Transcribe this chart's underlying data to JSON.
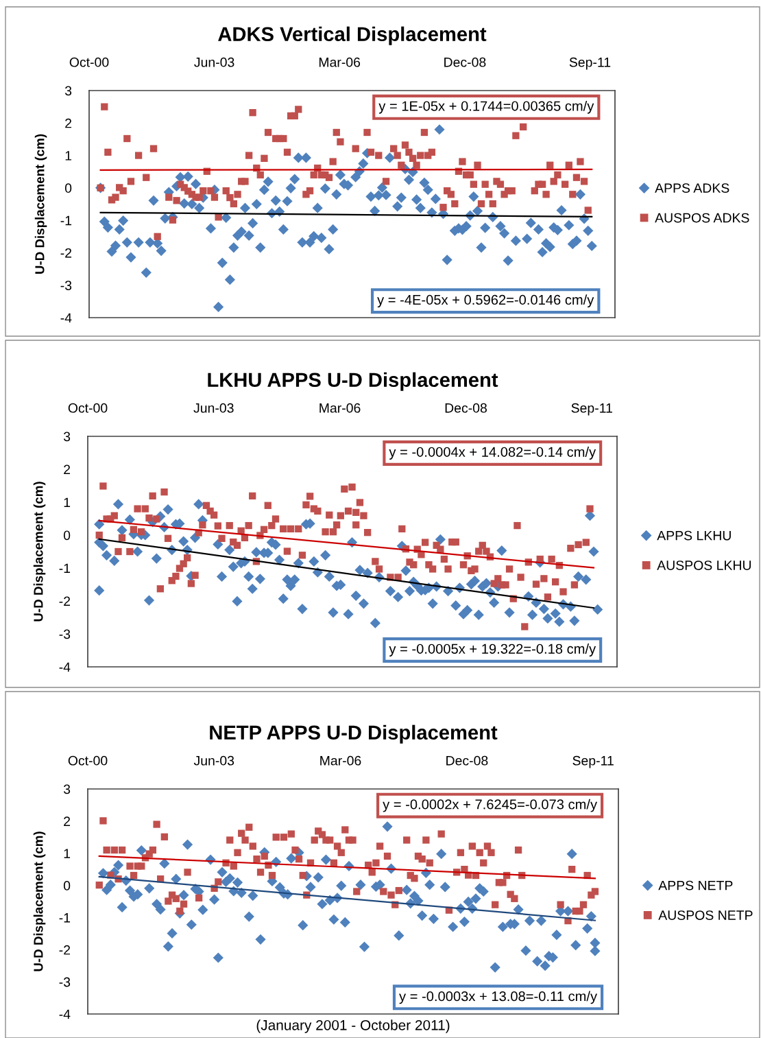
{
  "chart_data": [
    {
      "type": "scatter",
      "title": "ADKS Vertical Displacement",
      "ylabel": "U-D Displacement (cm)",
      "xlim": [
        "2000-10-02",
        "2012-04-03"
      ],
      "xticks": [
        {
          "value": "2000-10-02",
          "label": "Oct-00"
        },
        {
          "value": "2003-06-29",
          "label": "Jun-03"
        },
        {
          "value": "2006-03-25",
          "label": "Mar-06"
        },
        {
          "value": "2008-12-20",
          "label": "Dec-08"
        },
        {
          "value": "2011-09-16",
          "label": "Sep-11"
        }
      ],
      "ylim": [
        -4,
        3
      ],
      "yticks": [
        -4,
        -3,
        -2,
        -1,
        0,
        1,
        2,
        3
      ],
      "grid": false,
      "legend": "right",
      "series": [
        {
          "name": "APPS ADKS",
          "color": "#4f81bd",
          "marker": "diamond",
          "x": [
            "2001-01",
            "2001-02",
            "2001-03",
            "2001-04",
            "2001-05",
            "2001-06",
            "2001-07",
            "2001-08",
            "2001-09",
            "2001-11",
            "2002-01",
            "2002-02",
            "2002-03",
            "2002-04",
            "2002-05",
            "2002-06",
            "2002-07",
            "2002-08",
            "2002-09",
            "2002-10",
            "2002-11",
            "2002-12",
            "2003-01",
            "2003-02",
            "2003-03",
            "2003-04",
            "2003-05",
            "2003-06",
            "2003-07",
            "2003-08",
            "2003-09",
            "2003-10",
            "2003-11",
            "2003-12",
            "2004-01",
            "2004-02",
            "2004-03",
            "2004-04",
            "2004-05",
            "2004-06",
            "2004-07",
            "2004-08",
            "2004-09",
            "2004-10",
            "2004-11",
            "2004-12",
            "2005-01",
            "2005-02",
            "2005-03",
            "2005-04",
            "2005-05",
            "2005-06",
            "2005-07",
            "2005-08",
            "2005-09",
            "2005-10",
            "2005-11",
            "2005-12",
            "2006-01",
            "2006-02",
            "2006-03",
            "2006-04",
            "2006-05",
            "2006-06",
            "2006-08",
            "2006-09",
            "2006-10",
            "2006-11",
            "2006-12",
            "2007-01",
            "2007-02",
            "2007-03",
            "2007-04",
            "2007-05",
            "2007-07",
            "2007-08",
            "2007-09",
            "2007-10",
            "2007-11",
            "2007-12",
            "2008-01",
            "2008-02",
            "2008-03",
            "2008-04",
            "2008-05",
            "2008-06",
            "2008-07",
            "2008-08",
            "2008-10",
            "2008-11",
            "2008-12",
            "2009-01",
            "2009-02",
            "2009-03",
            "2009-04",
            "2009-05",
            "2009-06",
            "2009-08",
            "2009-10",
            "2009-11",
            "2009-12",
            "2010-02",
            "2010-05",
            "2010-06",
            "2010-08",
            "2010-09",
            "2010-10",
            "2010-11",
            "2010-12",
            "2011-01",
            "2011-02",
            "2011-04",
            "2011-05",
            "2011-06",
            "2011-07",
            "2011-08",
            "2011-09",
            "2011-10"
          ],
          "values": [
            0.0,
            -1.04,
            -1.22,
            -1.96,
            -1.78,
            -1.28,
            -1.01,
            -1.68,
            -2.14,
            -1.68,
            -2.61,
            -1.68,
            -0.39,
            -1.71,
            -1.94,
            -0.94,
            -0.13,
            -0.9,
            0.05,
            0.33,
            -0.48,
            0.35,
            -0.5,
            0.12,
            -0.62,
            -0.3,
            null,
            -1.25,
            -0.06,
            -3.67,
            -2.31,
            -0.92,
            -2.83,
            -1.84,
            -1.47,
            -1.35,
            -0.62,
            -1.47,
            -1.09,
            -0.5,
            -1.84,
            -0.06,
            0.19,
            -0.78,
            -0.39,
            -0.73,
            -1.28,
            -0.41,
            -0.01,
            0.27,
            0.93,
            -1.68,
            0.93,
            -1.68,
            -1.49,
            -0.62,
            -1.54,
            -0.02,
            -1.89,
            -1.28,
            -0.2,
            0.4,
            0.12,
            0.08,
            0.33,
            0.51,
            0.75,
            1.07,
            -0.27,
            -0.71,
            -0.23,
            0.01,
            -0.22,
            0.93,
            -0.57,
            -0.3,
            0.58,
            0.25,
            0.49,
            -0.36,
            -0.62,
            0.16,
            -0.06,
            -0.76,
            -0.34,
            1.8,
            -0.8,
            -2.22,
            -1.32,
            -1.25,
            -1.29,
            -1.18,
            -0.85,
            -0.27,
            -0.71,
            -1.84,
            -1.23,
            -0.9,
            -1.18,
            -1.4,
            -2.24,
            -1.63,
            -1.57,
            -1.08,
            -1.28,
            -1.98,
            -1.71,
            -1.82,
            -1.22,
            -1.3,
            -0.69,
            -1.15,
            -1.73,
            -1.63,
            -0.2,
            -0.95,
            -1.32,
            -1.79
          ]
        },
        {
          "name": "AUSPOS ADKS",
          "color": "#c0504d",
          "marker": "square",
          "x": [
            "2001-01",
            "2001-02",
            "2001-03",
            "2001-04",
            "2001-05",
            "2001-06",
            "2001-07",
            "2001-08",
            "2001-09",
            "2001-11",
            "2002-01",
            "2002-03",
            "2002-04",
            "2002-07",
            "2002-08",
            "2002-09",
            "2002-10",
            "2002-11",
            "2002-12",
            "2003-01",
            "2003-02",
            "2003-03",
            "2003-04",
            "2003-05",
            "2003-06",
            "2003-07",
            "2003-08",
            "2003-10",
            "2003-11",
            "2003-12",
            "2004-01",
            "2004-02",
            "2004-03",
            "2004-04",
            "2004-05",
            "2004-06",
            "2004-07",
            "2004-08",
            "2004-09",
            "2004-11",
            "2004-12",
            "2005-01",
            "2005-02",
            "2005-03",
            "2005-04",
            "2005-05",
            "2005-07",
            "2005-08",
            "2005-09",
            "2005-10",
            "2005-11",
            "2005-12",
            "2006-01",
            "2006-02",
            "2006-03",
            "2006-04",
            "2006-08",
            "2006-11",
            "2006-12",
            "2007-02",
            "2007-04",
            "2007-06",
            "2007-07",
            "2007-08",
            "2007-09",
            "2007-10",
            "2007-11",
            "2007-12",
            "2008-01",
            "2008-02",
            "2008-03",
            "2008-04",
            "2008-07",
            "2008-08",
            "2008-09",
            "2008-10",
            "2008-11",
            "2008-12",
            "2009-01",
            "2009-02",
            "2009-03",
            "2009-04",
            "2009-05",
            "2009-06",
            "2009-07",
            "2009-08",
            "2009-09",
            "2009-10",
            "2009-11",
            "2009-12",
            "2010-01",
            "2010-02",
            "2010-04",
            "2010-07",
            "2010-08",
            "2010-09",
            "2010-10",
            "2010-11",
            "2010-12",
            "2011-01",
            "2011-03",
            "2011-04",
            "2011-05",
            "2011-06",
            "2011-07",
            "2011-08",
            "2011-09"
          ],
          "values": [
            0.0,
            2.5,
            1.1,
            -0.37,
            -0.29,
            0.01,
            -0.09,
            1.52,
            0.2,
            1.0,
            0.32,
            1.21,
            -1.5,
            -0.29,
            -0.99,
            -0.39,
            0.11,
            0.01,
            -0.1,
            -0.2,
            -0.29,
            -0.29,
            -0.09,
            0.51,
            -0.09,
            -0.29,
            -0.9,
            -0.09,
            -0.3,
            -0.49,
            -0.2,
            0.2,
            0.2,
            1.0,
            2.32,
            0.61,
            0.4,
            0.91,
            1.71,
            1.52,
            1.52,
            1.52,
            1.1,
            2.22,
            2.22,
            2.42,
            -0.2,
            -0.09,
            0.4,
            0.61,
            0.4,
            0.4,
            0.32,
            0.81,
            1.71,
            1.42,
            1.21,
            1.71,
            1.1,
            1.0,
            0.2,
            1.21,
            1.0,
            0.7,
            1.32,
            1.1,
            0.91,
            0.7,
            1.0,
            1.71,
            1.0,
            1.1,
            -0.6,
            -0.09,
            -0.2,
            -0.49,
            0.51,
            0.81,
            0.4,
            0.4,
            0.11,
            0.7,
            -0.49,
            0.11,
            -0.2,
            -0.49,
            0.2,
            0.11,
            -0.2,
            -0.09,
            -0.09,
            1.61,
            1.88,
            -0.09,
            0.11,
            0.11,
            -0.2,
            0.7,
            0.2,
            0.4,
            0.11,
            0.7,
            -0.2,
            0.32,
            0.81,
            0.2,
            -0.69
          ]
        },
        {
          "type": "line",
          "color": "#cc0000",
          "marker": "none",
          "x": [
            "2001-01",
            "2011-10"
          ],
          "values": [
            0.55,
            0.57
          ]
        },
        {
          "type": "line",
          "color": "#000000",
          "marker": "none",
          "x": [
            "2001-01",
            "2011-10"
          ],
          "values": [
            -0.76,
            -0.89
          ]
        }
      ],
      "annotations": [
        "y = 1E-05x + 0.1744=0.00365 cm/y",
        "y = -4E-05x + 0.5962=-0.0146 cm/y"
      ]
    },
    {
      "type": "scatter",
      "title": "LKHU APPS U-D Displacement",
      "ylabel": "U-D Displacement (cm)",
      "xlim": [
        "2000-10-02",
        "2012-04-03"
      ],
      "xticks": [
        {
          "value": "2000-10-02",
          "label": "Oct-00"
        },
        {
          "value": "2003-06-29",
          "label": "Jun-03"
        },
        {
          "value": "2006-03-25",
          "label": "Mar-06"
        },
        {
          "value": "2008-12-20",
          "label": "Dec-08"
        },
        {
          "value": "2011-09-16",
          "label": "Sep-11"
        }
      ],
      "ylim": [
        -4,
        3
      ],
      "yticks": [
        -4,
        -3,
        -2,
        -1,
        0,
        1,
        2,
        3
      ],
      "grid": false,
      "legend": "right",
      "series": [
        {
          "name": "APPS LKHU",
          "color": "#4f81bd",
          "marker": "diamond",
          "x": [
            "2001-01",
            "2001-01",
            "2001-01",
            "2001-02",
            "2001-03",
            "2001-05",
            "2001-06",
            "2001-07",
            "2001-09",
            "2001-10",
            "2001-11",
            "2001-12",
            "2002-01",
            "2002-02",
            "2002-03",
            "2002-04",
            "2002-05",
            "2002-06",
            "2002-07",
            "2002-08",
            "2002-09",
            "2002-10",
            "2002-11",
            "2002-12",
            "2003-01",
            "2003-02",
            "2003-03",
            "2003-04",
            "2003-08",
            "2003-09",
            "2003-11",
            "2003-12",
            "2004-01",
            "2004-02",
            "2004-03",
            "2004-04",
            "2004-05",
            "2004-06",
            "2004-07",
            "2004-08",
            "2004-09",
            "2004-10",
            "2004-11",
            "2004-12",
            "2005-01",
            "2005-02",
            "2005-03",
            "2005-04",
            "2005-05",
            "2005-06",
            "2005-07",
            "2005-08",
            "2005-09",
            "2005-10",
            "2005-12",
            "2006-01",
            "2006-02",
            "2006-03",
            "2006-04",
            "2006-06",
            "2006-07",
            "2006-08",
            "2006-09",
            "2006-10",
            "2006-11",
            "2007-01",
            "2007-02",
            "2007-05",
            "2007-07",
            "2007-08",
            "2007-09",
            "2007-10",
            "2007-11",
            "2007-12",
            "2008-01",
            "2008-02",
            "2008-03",
            "2008-04",
            "2008-05",
            "2008-06",
            "2008-08",
            "2008-10",
            "2008-11",
            "2008-12",
            "2009-01",
            "2009-02",
            "2009-03",
            "2009-04",
            "2009-05",
            "2009-06",
            "2009-07",
            "2009-08",
            "2009-09",
            "2009-10",
            "2009-12",
            "2010-05",
            "2010-06",
            "2010-07",
            "2010-08",
            "2010-09",
            "2010-10",
            "2010-12",
            "2011-01",
            "2011-02",
            "2011-04",
            "2011-05",
            "2011-06",
            "2011-08",
            "2011-09",
            "2011-10",
            "2011-11"
          ],
          "values": [
            -0.22,
            -1.68,
            0.33,
            -0.33,
            -0.61,
            -0.78,
            0.94,
            0.15,
            0.47,
            0.03,
            -0.5,
            0.01,
            0,
            -1.98,
            0.4,
            -0.71,
            0.57,
            0.24,
            0.78,
            -0.45,
            0.33,
            0.35,
            -0.19,
            -0.45,
            -1.24,
            -0.08,
            0.94,
            0.45,
            -0.28,
            -1.26,
            -0.45,
            -0.96,
            -2.01,
            -0.85,
            -0.8,
            -1.26,
            -1.63,
            -0.52,
            -1.33,
            -0.54,
            -0.54,
            -0.22,
            -0.29,
            -0.75,
            -1.93,
            -1.35,
            -1.54,
            -1.35,
            -0.85,
            -2.24,
            0.33,
            0.35,
            -0.8,
            -1.13,
            -0.61,
            -1.26,
            -2.35,
            -1.54,
            -1.51,
            -2.4,
            -0.22,
            -1.84,
            -1.06,
            -2.08,
            -1.15,
            -2.67,
            -1.28,
            -1.7,
            -1.88,
            -0.33,
            -1.08,
            -1.7,
            -1.42,
            -1.54,
            -1.68,
            -1.67,
            -1.6,
            -2.08,
            -1.56,
            -0.13,
            -1.7,
            -2.14,
            -1.6,
            -2.4,
            -2.28,
            -1.49,
            -1.39,
            -2.42,
            -1.56,
            -1.46,
            -1.74,
            -2.05,
            -1.56,
            -0.47,
            -2.35,
            -1.86,
            -2.42,
            -2.05,
            -0.83,
            -2.24,
            -2.53,
            -2.38,
            -2.63,
            -2.1,
            -2.17,
            -2.6,
            -1.26,
            -1.35,
            0.59,
            -0.5,
            -2.26
          ]
        },
        {
          "name": "AUSPOS LKHU",
          "color": "#c0504d",
          "marker": "square",
          "x": [
            "2001-01",
            "2001-02",
            "2001-03",
            "2001-04",
            "2001-05",
            "2001-06",
            "2001-07",
            "2001-09",
            "2001-10",
            "2001-11",
            "2001-12",
            "2002-01",
            "2002-02",
            "2002-03",
            "2002-04",
            "2002-05",
            "2002-06",
            "2002-07",
            "2002-08",
            "2002-09",
            "2002-10",
            "2002-11",
            "2002-12",
            "2003-01",
            "2003-02",
            "2003-03",
            "2003-04",
            "2003-05",
            "2003-06",
            "2003-07",
            "2003-08",
            "2003-09",
            "2003-11",
            "2003-12",
            "2004-01",
            "2004-02",
            "2004-03",
            "2004-04",
            "2004-05",
            "2004-06",
            "2004-07",
            "2004-08",
            "2004-09",
            "2004-10",
            "2004-11",
            "2005-01",
            "2005-02",
            "2005-03",
            "2005-05",
            "2005-06",
            "2005-07",
            "2005-08",
            "2005-09",
            "2005-10",
            "2005-12",
            "2006-01",
            "2006-02",
            "2006-03",
            "2006-04",
            "2006-05",
            "2006-06",
            "2006-07",
            "2006-08",
            "2006-08",
            "2006-09",
            "2006-10",
            "2006-11",
            "2007-01",
            "2007-02",
            "2007-05",
            "2007-07",
            "2007-08",
            "2007-09",
            "2007-10",
            "2007-11",
            "2007-12",
            "2008-01",
            "2008-02",
            "2008-03",
            "2008-04",
            "2008-05",
            "2008-06",
            "2008-07",
            "2008-08",
            "2008-09",
            "2008-10",
            "2008-12",
            "2009-01",
            "2009-02",
            "2009-03",
            "2009-04",
            "2009-05",
            "2009-06",
            "2009-07",
            "2009-08",
            "2009-09",
            "2009-10",
            "2009-11",
            "2009-12",
            "2010-01",
            "2010-02",
            "2010-03",
            "2010-04",
            "2010-05",
            "2010-07",
            "2010-08",
            "2010-09",
            "2010-10",
            "2010-11",
            "2010-12",
            "2011-01",
            "2011-02",
            "2011-04",
            "2011-05",
            "2011-06",
            "2011-08",
            "2011-09"
          ],
          "values": [
            0,
            1.49,
            0.49,
            0.49,
            0.59,
            -0.5,
            -0.08,
            -0.5,
            0.17,
            0.8,
            0.1,
            0.8,
            0.52,
            1.19,
            0.49,
            -1.63,
            1.31,
            -0.1,
            -1.38,
            -1.25,
            -1.01,
            -0.87,
            -0.69,
            -1.47,
            -1.22,
            0.07,
            0.31,
            0.9,
            0.73,
            0.61,
            0.28,
            -0.1,
            0.29,
            -0.21,
            -0.31,
            0.13,
            -0.08,
            0.29,
            1.19,
            -0.8,
            -0.01,
            0.17,
            0.9,
            0.29,
            0.49,
            0.19,
            -0.49,
            0.19,
            0.19,
            -0.61,
            0.92,
            1.18,
            0.8,
            0.73,
            0.1,
            0.61,
            0.1,
            0.31,
            0.59,
            1.4,
            0.73,
            1.46,
            0.69,
            0.31,
            0.99,
            0.59,
            0.08,
            -0.8,
            -1.03,
            -1.28,
            -1.28,
            0.19,
            -0.42,
            -0.82,
            -0.9,
            -0.43,
            -0.59,
            -0.22,
            -0.9,
            -1.03,
            -0.31,
            -0.43,
            -0.73,
            -1.03,
            -0.21,
            -0.21,
            -0.9,
            -0.63,
            -1.08,
            -1.03,
            -0.49,
            -0.31,
            -0.49,
            -0.66,
            -1.47,
            -1.32,
            -1.51,
            -1.51,
            -1.03,
            -1.93,
            0.29,
            -1.28,
            -2.78,
            -0.82,
            -1.49,
            -0.73,
            -1.32,
            -1.88,
            -0.73,
            -1.42,
            -0.92,
            -1.72,
            -0.4,
            -1.51,
            -0.29,
            -0.22,
            0.8
          ]
        },
        {
          "type": "line",
          "color": "#cc0000",
          "marker": "none",
          "x": [
            "2001-01",
            "2011-10"
          ],
          "values": [
            0.44,
            -0.99
          ]
        },
        {
          "type": "line",
          "color": "#000000",
          "marker": "none",
          "x": [
            "2001-01",
            "2011-10"
          ],
          "values": [
            -0.12,
            -2.21
          ]
        }
      ],
      "annotations": [
        "y = -0.0004x + 14.082=-0.14 cm/y",
        "y = -0.0005x + 19.322=-0.18 cm/y"
      ]
    },
    {
      "type": "scatter",
      "title": "NETP APPS U-D Displacement",
      "ylabel": "U-D Displacement (cm)",
      "xlabel": "(January 2001 - October 2011)",
      "xlim": [
        "2000-10-02",
        "2012-04-03"
      ],
      "xticks": [
        {
          "value": "2000-10-02",
          "label": "Oct-00"
        },
        {
          "value": "2003-06-29",
          "label": "Jun-03"
        },
        {
          "value": "2006-03-25",
          "label": "Mar-06"
        },
        {
          "value": "2008-12-20",
          "label": "Dec-08"
        },
        {
          "value": "2011-09-16",
          "label": "Sep-11"
        }
      ],
      "ylim": [
        -4,
        3
      ],
      "yticks": [
        -4,
        -3,
        -2,
        -1,
        0,
        1,
        2,
        3
      ],
      "grid": false,
      "legend": "right",
      "series": [
        {
          "name": "APPS NETP",
          "color": "#4f81bd",
          "marker": "diamond",
          "x": [
            "2001-02",
            "2001-03",
            "2001-04",
            "2001-05",
            "2001-06",
            "2001-07",
            "2001-08",
            "2001-09",
            "2001-10",
            "2001-11",
            "2001-12",
            "2002-02",
            "2002-04",
            "2002-05",
            "2002-06",
            "2002-07",
            "2002-08",
            "2002-09",
            "2002-10",
            "2002-11",
            "2002-12",
            "2003-01",
            "2003-02",
            "2003-03",
            "2003-04",
            "2003-06",
            "2003-07",
            "2003-08",
            "2003-09",
            "2003-10",
            "2003-11",
            "2003-12",
            "2004-01",
            "2004-02",
            "2004-04",
            "2004-05",
            "2004-07",
            "2004-08",
            "2004-10",
            "2004-11",
            "2004-12",
            "2005-01",
            "2005-02",
            "2005-03",
            "2005-05",
            "2005-06",
            "2005-07",
            "2005-08",
            "2005-10",
            "2005-11",
            "2005-12",
            "2006-01",
            "2006-02",
            "2006-03",
            "2006-04",
            "2006-05",
            "2006-06",
            "2006-09",
            "2006-10",
            "2007-01",
            "2007-02",
            "2007-04",
            "2007-05",
            "2007-07",
            "2007-09",
            "2007-10",
            "2007-11",
            "2007-12",
            "2008-01",
            "2008-02",
            "2008-03",
            "2008-04",
            "2008-06",
            "2008-07",
            "2008-09",
            "2008-11",
            "2008-12",
            "2009-01",
            "2009-02",
            "2009-03",
            "2009-04",
            "2009-05",
            "2009-08",
            "2009-10",
            "2009-12",
            "2010-01",
            "2010-02",
            "2010-04",
            "2010-05",
            "2010-07",
            "2010-08",
            "2010-09",
            "2010-10",
            "2010-11",
            "2010-12",
            "2011-01",
            "2011-03",
            "2011-04",
            "2011-05",
            "2011-08",
            "2011-09",
            "2011-10",
            "2011-10"
          ],
          "values": [
            0.38,
            -0.14,
            0.02,
            0.41,
            0.63,
            -0.68,
            0.15,
            -0.16,
            -0.35,
            -0.28,
            1.09,
            -0.09,
            -0.58,
            -0.75,
            0.68,
            -1.9,
            -1.49,
            0.2,
            -0.87,
            -0.3,
            1.27,
            -1.22,
            -0.11,
            -0.19,
            -0.76,
            0.8,
            -0.44,
            -2.25,
            0.41,
            0.11,
            0.22,
            -0.18,
            0.09,
            -0.23,
            -0.97,
            -0.32,
            -1.68,
            1.03,
            0.13,
            0.73,
            -0.06,
            -0.25,
            -0.28,
            0.84,
            1.02,
            -1.24,
            0.29,
            -0.05,
            0.25,
            -0.58,
            0.8,
            -0.46,
            -1.06,
            -0.39,
            -0.01,
            -1.15,
            0.6,
            0.02,
            -1.91,
            -0.04,
            0.02,
            1.83,
            0.52,
            -1.56,
            -0.14,
            -0.56,
            -0.33,
            -0.48,
            -0.94,
            0.39,
            0.02,
            -1.04,
            0.98,
            -0.05,
            -1.29,
            -0.72,
            -1.13,
            -0.51,
            -0.72,
            -0.41,
            -0.09,
            -0.19,
            -2.55,
            -1.29,
            -1.2,
            -1.2,
            -0.75,
            -2.03,
            -1.1,
            -2.36,
            -1.1,
            -2.5,
            -2.2,
            -2.24,
            -1.54,
            -0.8,
            -0.8,
            0.98,
            -1.86,
            -1.34,
            -0.96,
            -1.79,
            -2.04
          ]
        },
        {
          "name": "AUSPOS NETP",
          "color": "#c0504d",
          "marker": "square",
          "x": [
            "2001-01",
            "2001-02",
            "2001-03",
            "2001-04",
            "2001-05",
            "2001-06",
            "2001-07",
            "2001-09",
            "2001-10",
            "2001-11",
            "2001-12",
            "2002-01",
            "2002-02",
            "2002-03",
            "2002-04",
            "2002-05",
            "2002-06",
            "2002-07",
            "2002-08",
            "2002-09",
            "2002-10",
            "2002-11",
            "2002-12",
            "2003-03",
            "2003-07",
            "2003-08",
            "2003-10",
            "2003-11",
            "2003-12",
            "2004-01",
            "2004-02",
            "2004-03",
            "2004-04",
            "2004-05",
            "2004-06",
            "2004-07",
            "2004-08",
            "2004-09",
            "2004-10",
            "2004-11",
            "2005-01",
            "2005-03",
            "2005-04",
            "2005-05",
            "2005-06",
            "2005-07",
            "2005-08",
            "2005-09",
            "2005-10",
            "2005-11",
            "2005-12",
            "2006-01",
            "2006-02",
            "2006-03",
            "2006-04",
            "2006-05",
            "2006-06",
            "2006-07",
            "2006-08",
            "2006-11",
            "2006-12",
            "2007-01",
            "2007-02",
            "2007-03",
            "2007-04",
            "2007-05",
            "2007-06",
            "2007-07",
            "2007-09",
            "2007-10",
            "2007-11",
            "2007-12",
            "2008-01",
            "2008-02",
            "2008-03",
            "2008-06",
            "2008-08",
            "2008-10",
            "2008-11",
            "2008-12",
            "2009-01",
            "2009-02",
            "2009-03",
            "2009-04",
            "2009-05",
            "2009-06",
            "2009-07",
            "2009-08",
            "2009-09",
            "2009-10",
            "2009-11",
            "2009-12",
            "2010-01",
            "2010-02",
            "2010-03",
            "2011-01",
            "2011-03",
            "2011-04",
            "2011-05",
            "2011-06",
            "2011-07",
            "2011-08",
            "2011-09",
            "2011-10"
          ],
          "values": [
            0.01,
            2.01,
            1.1,
            0.32,
            1.1,
            0.2,
            1.1,
            0.6,
            0.31,
            0.6,
            0.6,
            0.86,
            0.98,
            1.1,
            1.9,
            0.2,
            1.51,
            -0.49,
            -0.3,
            -0.41,
            -0.8,
            -0.58,
            0.41,
            -0.39,
            -0.09,
            0.11,
            0.7,
            1.41,
            0.6,
            1.02,
            1.62,
            1.41,
            1.81,
            1.22,
            0.82,
            0.41,
            0.91,
            0.63,
            0.31,
            1.5,
            1.5,
            1.6,
            1.1,
            0.82,
            0.31,
            -0.3,
            0.7,
            1.41,
            1.69,
            1.58,
            1.41,
            1.41,
            0.7,
            1.22,
            1.02,
            1.73,
            1.41,
            1.41,
            -0.19,
            0.63,
            0.41,
            0.7,
            1.22,
            -0.19,
            0.91,
            -0.3,
            -0.6,
            -0.16,
            1.41,
            0.31,
            0.22,
            0.91,
            0.82,
            1.41,
            0.7,
            1.6,
            -0.77,
            0.41,
            1.02,
            0.5,
            0.32,
            1.22,
            0.31,
            1.02,
            0.7,
            1.22,
            1.02,
            -0.6,
            0.09,
            0.09,
            0.31,
            -0.28,
            -0.41,
            1.1,
            0.31,
            -0.6,
            -1.1,
            0.5,
            -0.8,
            -0.8,
            -0.6,
            0.31,
            -0.3,
            -0.19
          ]
        },
        {
          "type": "line",
          "color": "#cc0000",
          "marker": "none",
          "x": [
            "2001-01",
            "2011-10"
          ],
          "values": [
            0.91,
            0.22
          ]
        },
        {
          "type": "line",
          "color": "#1f497d",
          "marker": "none",
          "x": [
            "2001-01",
            "2011-10"
          ],
          "values": [
            0.27,
            -1.09
          ]
        }
      ],
      "annotations": [
        "y = -0.0002x + 7.6245=-0.073 cm/y",
        "y = -0.0003x + 13.08=-0.11 cm/y"
      ]
    }
  ]
}
